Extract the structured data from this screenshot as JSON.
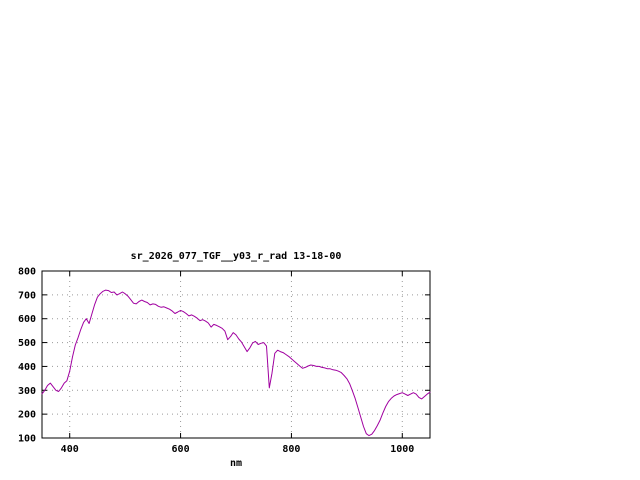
{
  "window": {
    "background": "#ffffff"
  },
  "chart_data": {
    "type": "line",
    "title": "sr_2026_077_TGF__y03_r_rad 13-18-00",
    "xlabel": "nm",
    "ylabel": "",
    "xlim": [
      350,
      1050
    ],
    "ylim": [
      100,
      800
    ],
    "xticks": [
      400,
      600,
      800,
      1000
    ],
    "yticks": [
      100,
      200,
      300,
      400,
      500,
      600,
      700,
      800
    ],
    "grid": true,
    "legend": "none",
    "line_color": "#a000a0",
    "grid_color": "#9a9a9a",
    "axis_color": "#000000",
    "series": [
      {
        "name": "sr_2026_077_TGF__y03_r_rad",
        "x": [
          350,
          355,
          360,
          365,
          370,
          375,
          380,
          385,
          390,
          395,
          400,
          405,
          410,
          415,
          420,
          425,
          430,
          435,
          440,
          445,
          450,
          455,
          460,
          465,
          470,
          475,
          480,
          485,
          490,
          495,
          500,
          505,
          510,
          515,
          520,
          525,
          530,
          535,
          540,
          545,
          550,
          555,
          560,
          565,
          570,
          575,
          580,
          585,
          590,
          595,
          600,
          605,
          610,
          615,
          620,
          625,
          630,
          635,
          640,
          645,
          650,
          655,
          660,
          665,
          670,
          675,
          680,
          685,
          690,
          695,
          700,
          705,
          710,
          715,
          720,
          725,
          730,
          735,
          740,
          745,
          750,
          755,
          760,
          765,
          770,
          775,
          780,
          785,
          790,
          795,
          800,
          805,
          810,
          815,
          820,
          825,
          830,
          835,
          840,
          845,
          850,
          855,
          860,
          865,
          870,
          875,
          880,
          885,
          890,
          895,
          900,
          905,
          910,
          915,
          920,
          925,
          930,
          935,
          940,
          945,
          950,
          955,
          960,
          965,
          970,
          975,
          980,
          985,
          990,
          995,
          1000,
          1005,
          1010,
          1015,
          1020,
          1025,
          1030,
          1035,
          1040,
          1045,
          1050
        ],
        "y": [
          285,
          300,
          320,
          330,
          315,
          300,
          295,
          310,
          330,
          340,
          380,
          440,
          490,
          520,
          555,
          585,
          600,
          580,
          620,
          660,
          690,
          705,
          715,
          720,
          718,
          710,
          712,
          700,
          705,
          712,
          705,
          695,
          680,
          665,
          662,
          672,
          678,
          672,
          668,
          658,
          662,
          660,
          652,
          648,
          650,
          645,
          640,
          632,
          622,
          628,
          635,
          630,
          622,
          612,
          616,
          610,
          602,
          592,
          596,
          590,
          582,
          565,
          576,
          572,
          566,
          560,
          548,
          512,
          525,
          542,
          532,
          515,
          502,
          482,
          462,
          478,
          498,
          505,
          492,
          497,
          500,
          485,
          310,
          372,
          455,
          468,
          462,
          458,
          450,
          442,
          432,
          422,
          412,
          402,
          392,
          396,
          402,
          406,
          404,
          400,
          400,
          396,
          394,
          390,
          390,
          386,
          384,
          380,
          374,
          362,
          348,
          328,
          298,
          265,
          228,
          188,
          148,
          118,
          110,
          116,
          132,
          152,
          175,
          205,
          232,
          252,
          266,
          276,
          282,
          286,
          290,
          284,
          278,
          284,
          290,
          284,
          270,
          264,
          274,
          284,
          292
        ]
      }
    ]
  }
}
